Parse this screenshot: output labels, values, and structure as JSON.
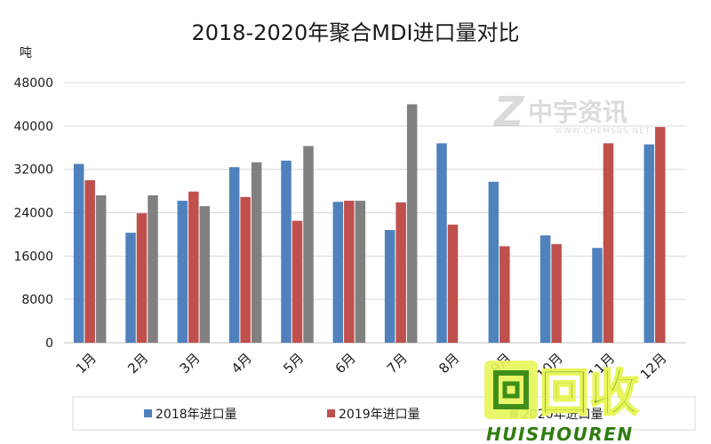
{
  "chart_data": {
    "type": "bar",
    "title": "2018-2020年聚合MDI进口量对比",
    "ylabel": "吨",
    "xlabel": "",
    "ylim": [
      0,
      48000
    ],
    "yticks": [
      0,
      8000,
      16000,
      24000,
      32000,
      40000,
      48000
    ],
    "grid": true,
    "legend_position": "bottom",
    "categories": [
      "1月",
      "2月",
      "3月",
      "4月",
      "5月",
      "6月",
      "7月",
      "8月",
      "9月",
      "10月",
      "11月",
      "12月"
    ],
    "series": [
      {
        "name": "2018年进口量",
        "color": "#4f81bd",
        "values": [
          33000,
          20300,
          26200,
          32400,
          33600,
          26000,
          20800,
          36800,
          29700,
          19800,
          17500,
          36600
        ]
      },
      {
        "name": "2019年进口量",
        "color": "#c0504d",
        "values": [
          30000,
          23900,
          27900,
          26900,
          22500,
          26200,
          25900,
          21800,
          17800,
          18200,
          36800,
          39800
        ]
      },
      {
        "name": "2020年进口量",
        "color": "#808080",
        "values": [
          27200,
          27200,
          25200,
          33300,
          36300,
          26200,
          44000,
          null,
          null,
          null,
          null,
          null
        ]
      }
    ]
  },
  "watermarks": {
    "logo_top_cn": "中宇资讯",
    "logo_top_url": "WWW.CHEMSBS.NET",
    "logo_bottom_cn": "回收",
    "logo_bottom_en": "HUISHOUREN"
  }
}
